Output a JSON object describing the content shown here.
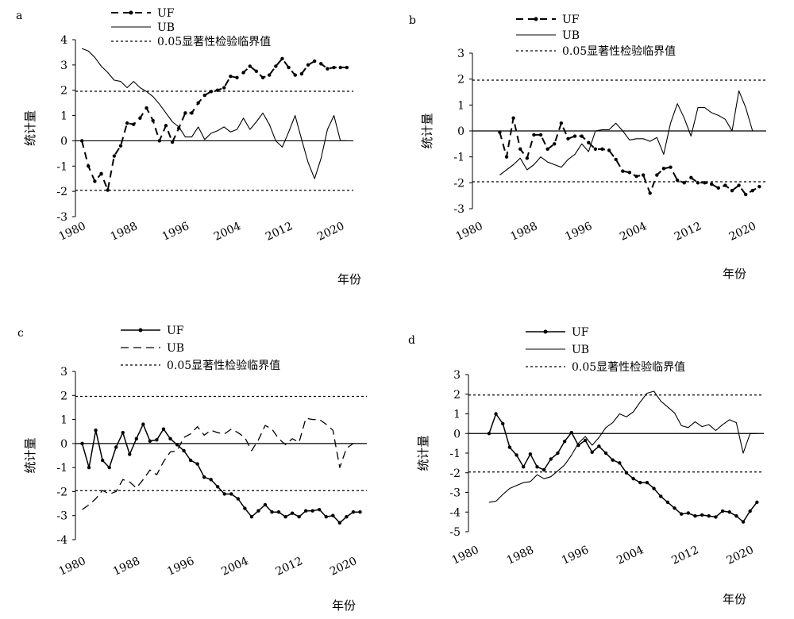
{
  "chart_data": [
    {
      "type": "line",
      "panel_label": "a",
      "ylabel": "统计量",
      "xlabel": "年份",
      "x_ticks": [
        "1980",
        "1988",
        "1996",
        "2004",
        "2012",
        "2020"
      ],
      "y_ticks": [
        "-3",
        "-2",
        "-1",
        "0",
        "1",
        "2",
        "3",
        "4"
      ],
      "ylim": [
        -3,
        4
      ],
      "xlim": [
        1980,
        2023
      ],
      "threshold_label": "0.05显著性检验临界值",
      "thresholds": [
        1.96,
        -1.96
      ],
      "series": [
        {
          "name": "UF",
          "style": "dash-dot-markers",
          "x": [
            1981,
            1982,
            1983,
            1984,
            1985,
            1986,
            1987,
            1988,
            1989,
            1990,
            1991,
            1992,
            1993,
            1994,
            1995,
            1996,
            1997,
            1998,
            1999,
            2000,
            2001,
            2002,
            2003,
            2004,
            2005,
            2006,
            2007,
            2008,
            2009,
            2010,
            2011,
            2012,
            2013,
            2014,
            2015,
            2016,
            2017,
            2018,
            2019,
            2020,
            2021,
            2022
          ],
          "y": [
            0,
            -1,
            -1.6,
            -1.3,
            -1.95,
            -0.6,
            -0.2,
            0.7,
            0.65,
            0.9,
            1.3,
            0.8,
            0.0,
            0.6,
            -0.05,
            0.5,
            1.1,
            1.1,
            1.5,
            1.8,
            1.95,
            2.0,
            2.1,
            2.55,
            2.5,
            2.7,
            2.95,
            2.75,
            2.5,
            2.6,
            2.95,
            3.25,
            2.9,
            2.6,
            2.65,
            3.0,
            3.15,
            3.05,
            2.85,
            2.9,
            2.9,
            2.9
          ]
        },
        {
          "name": "UB",
          "style": "solid",
          "x": [
            1981,
            1982,
            1983,
            1984,
            1985,
            1986,
            1987,
            1988,
            1989,
            1990,
            1991,
            1992,
            1993,
            1994,
            1995,
            1996,
            1997,
            1998,
            1999,
            2000,
            2001,
            2002,
            2003,
            2004,
            2005,
            2006,
            2007,
            2008,
            2009,
            2010,
            2011,
            2012,
            2013,
            2014,
            2015,
            2016,
            2017,
            2018,
            2019,
            2020,
            2021,
            2022
          ],
          "y": [
            3.65,
            3.55,
            3.3,
            2.95,
            2.7,
            2.4,
            2.35,
            2.1,
            2.35,
            2.1,
            1.95,
            1.75,
            1.45,
            1.1,
            0.75,
            0.55,
            0.15,
            0.15,
            0.55,
            0.05,
            0.3,
            0.4,
            0.55,
            0.35,
            0.45,
            0.9,
            0.45,
            0.75,
            1.1,
            0.65,
            0.0,
            -0.25,
            0.35,
            1.0,
            0.05,
            -0.85,
            -1.5,
            -0.7,
            0.45,
            1.0,
            0.0,
            0.0
          ]
        }
      ]
    },
    {
      "type": "line",
      "panel_label": "b",
      "ylabel": "统计量",
      "xlabel": "年份",
      "x_ticks": [
        "1980",
        "1988",
        "1996",
        "2004",
        "2012",
        "2020"
      ],
      "y_ticks": [
        "-3",
        "-2",
        "-1",
        "0",
        "1",
        "2",
        "3"
      ],
      "ylim": [
        -3,
        3
      ],
      "xlim": [
        1980,
        2023
      ],
      "threshold_label": "0.05显著性检验临界值",
      "thresholds": [
        1.96,
        -1.96
      ],
      "series": [
        {
          "name": "UF",
          "style": "dash-dot-markers",
          "x": [
            1984,
            1985,
            1986,
            1987,
            1988,
            1989,
            1990,
            1991,
            1992,
            1993,
            1994,
            1995,
            1996,
            1997,
            1998,
            1999,
            2000,
            2001,
            2002,
            2003,
            2004,
            2005,
            2006,
            2007,
            2008,
            2009,
            2010,
            2011,
            2012,
            2013,
            2014,
            2015,
            2016,
            2017,
            2018,
            2019,
            2020,
            2021,
            2022
          ],
          "y": [
            -0.05,
            -1.0,
            0.5,
            -0.7,
            -1.05,
            -0.15,
            -0.15,
            -0.7,
            -0.5,
            0.3,
            -0.3,
            -0.2,
            -0.2,
            -0.45,
            -0.7,
            -0.7,
            -0.75,
            -1.1,
            -1.55,
            -1.6,
            -1.75,
            -1.7,
            -2.4,
            -1.7,
            -1.45,
            -1.4,
            -1.9,
            -2.0,
            -1.8,
            -2.0,
            -2.0,
            -2.05,
            -2.2,
            -2.1,
            -2.3,
            -2.1,
            -2.45,
            -2.3,
            -2.15
          ]
        },
        {
          "name": "UB",
          "style": "solid",
          "x": [
            1984,
            1985,
            1986,
            1987,
            1988,
            1989,
            1990,
            1991,
            1992,
            1993,
            1994,
            1995,
            1996,
            1997,
            1998,
            1999,
            2000,
            2001,
            2002,
            2003,
            2004,
            2005,
            2006,
            2007,
            2008,
            2009,
            2010,
            2011,
            2012,
            2013,
            2014,
            2015,
            2016,
            2017,
            2018,
            2019,
            2020,
            2021,
            2022
          ],
          "y": [
            -1.7,
            -1.5,
            -1.3,
            -1.05,
            -1.5,
            -1.3,
            -1.0,
            -1.2,
            -1.3,
            -1.4,
            -1.1,
            -0.9,
            -0.5,
            -0.8,
            0.0,
            0.05,
            0.05,
            0.3,
            0.0,
            -0.35,
            -0.3,
            -0.3,
            -0.4,
            -0.25,
            -0.9,
            0.3,
            1.05,
            0.5,
            -0.2,
            0.9,
            0.9,
            0.7,
            0.6,
            0.45,
            0.0,
            1.55,
            0.9,
            0.0,
            0.0
          ]
        }
      ]
    },
    {
      "type": "line",
      "panel_label": "c",
      "ylabel": "统计量",
      "xlabel": "年份",
      "x_ticks": [
        "1980",
        "1988",
        "1996",
        "2004",
        "2012",
        "2020"
      ],
      "y_ticks": [
        "-4",
        "-3",
        "-2",
        "-1",
        "0",
        "1",
        "2",
        "3"
      ],
      "ylim": [
        -4,
        3
      ],
      "xlim": [
        1980,
        2023
      ],
      "threshold_label": "0.05显著性检验临界值",
      "thresholds": [
        1.96,
        -1.96
      ],
      "series": [
        {
          "name": "UF",
          "style": "solid-markers",
          "x": [
            1981,
            1982,
            1983,
            1984,
            1985,
            1986,
            1987,
            1988,
            1989,
            1990,
            1991,
            1992,
            1993,
            1994,
            1995,
            1996,
            1997,
            1998,
            1999,
            2000,
            2001,
            2002,
            2003,
            2004,
            2005,
            2006,
            2007,
            2008,
            2009,
            2010,
            2011,
            2012,
            2013,
            2014,
            2015,
            2016,
            2017,
            2018,
            2019,
            2020,
            2021,
            2022
          ],
          "y": [
            0.0,
            -1.0,
            0.55,
            -0.7,
            -1.0,
            -0.15,
            0.45,
            -0.45,
            0.2,
            0.8,
            0.1,
            0.15,
            0.6,
            0.2,
            -0.05,
            -0.3,
            -0.7,
            -0.85,
            -1.4,
            -1.5,
            -1.8,
            -2.1,
            -2.1,
            -2.3,
            -2.7,
            -3.05,
            -2.8,
            -2.55,
            -2.85,
            -2.85,
            -3.05,
            -2.9,
            -3.05,
            -2.8,
            -2.8,
            -2.75,
            -3.05,
            -3.0,
            -3.3,
            -3.05,
            -2.85,
            -2.85
          ]
        },
        {
          "name": "UB",
          "style": "dashed",
          "x": [
            1981,
            1982,
            1983,
            1984,
            1985,
            1986,
            1987,
            1988,
            1989,
            1990,
            1991,
            1992,
            1993,
            1994,
            1995,
            1996,
            1997,
            1998,
            1999,
            2000,
            2001,
            2002,
            2003,
            2004,
            2005,
            2006,
            2007,
            2008,
            2009,
            2010,
            2011,
            2012,
            2013,
            2014,
            2015,
            2016,
            2017,
            2018,
            2019,
            2020,
            2021,
            2022
          ],
          "y": [
            -2.75,
            -2.55,
            -2.3,
            -1.95,
            -2.1,
            -2.0,
            -1.5,
            -1.6,
            -1.85,
            -1.5,
            -1.1,
            -1.3,
            -0.75,
            -0.35,
            -0.3,
            0.25,
            0.4,
            0.7,
            0.35,
            0.55,
            0.45,
            0.4,
            0.6,
            0.45,
            0.25,
            -0.3,
            0.15,
            0.75,
            0.6,
            0.2,
            -0.05,
            0.2,
            0.05,
            1.05,
            1.0,
            1.0,
            0.8,
            0.55,
            -1.0,
            -0.2,
            0.0,
            0.0
          ]
        }
      ]
    },
    {
      "type": "line",
      "panel_label": "d",
      "ylabel": "统计量",
      "xlabel": "年份",
      "x_ticks": [
        "1980",
        "1988",
        "1996",
        "2004",
        "2012",
        "2020"
      ],
      "y_ticks": [
        "-5",
        "-4",
        "-3",
        "-2",
        "-1",
        "0",
        "1",
        "2",
        "3"
      ],
      "ylim": [
        -5,
        3
      ],
      "xlim": [
        1980,
        2023
      ],
      "threshold_label": "0.05显著性检验临界值",
      "thresholds": [
        1.96,
        -1.96
      ],
      "series": [
        {
          "name": "UF",
          "style": "solid-markers",
          "x": [
            1983,
            1984,
            1985,
            1986,
            1987,
            1988,
            1989,
            1990,
            1991,
            1992,
            1993,
            1994,
            1995,
            1996,
            1997,
            1998,
            1999,
            2000,
            2001,
            2002,
            2003,
            2004,
            2005,
            2006,
            2007,
            2008,
            2009,
            2010,
            2011,
            2012,
            2013,
            2014,
            2015,
            2016,
            2017,
            2018,
            2019,
            2020,
            2021,
            2022
          ],
          "y": [
            0.0,
            1.0,
            0.5,
            -0.7,
            -1.1,
            -1.7,
            -1.05,
            -1.7,
            -1.85,
            -1.3,
            -1.0,
            -0.4,
            0.05,
            -0.6,
            -0.35,
            -0.95,
            -0.65,
            -1.0,
            -1.35,
            -1.5,
            -2.0,
            -2.3,
            -2.5,
            -2.5,
            -2.8,
            -3.2,
            -3.5,
            -3.8,
            -4.1,
            -4.05,
            -4.2,
            -4.15,
            -4.2,
            -4.25,
            -3.95,
            -4.0,
            -4.2,
            -4.5,
            -3.95,
            -3.5
          ]
        },
        {
          "name": "UB",
          "style": "solid",
          "x": [
            1983,
            1984,
            1985,
            1986,
            1987,
            1988,
            1989,
            1990,
            1991,
            1992,
            1993,
            1994,
            1995,
            1996,
            1997,
            1998,
            1999,
            2000,
            2001,
            2002,
            2003,
            2004,
            2005,
            2006,
            2007,
            2008,
            2009,
            2010,
            2011,
            2012,
            2013,
            2014,
            2015,
            2016,
            2017,
            2018,
            2019,
            2020,
            2021,
            2022
          ],
          "y": [
            -3.5,
            -3.45,
            -3.1,
            -2.8,
            -2.65,
            -2.5,
            -2.45,
            -2.1,
            -2.3,
            -2.2,
            -1.9,
            -1.6,
            -1.1,
            -0.5,
            -0.15,
            -0.6,
            -0.2,
            0.3,
            0.55,
            1.0,
            0.85,
            1.1,
            1.6,
            2.05,
            2.15,
            1.65,
            1.35,
            1.05,
            0.4,
            0.3,
            0.6,
            0.35,
            0.45,
            0.15,
            0.45,
            0.7,
            0.55,
            -1.0,
            0.0,
            0.0
          ]
        }
      ]
    }
  ]
}
